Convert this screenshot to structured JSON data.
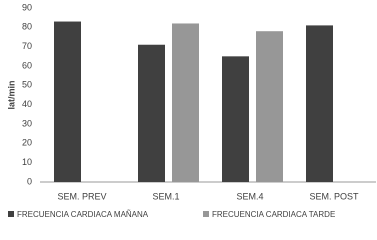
{
  "chart_data": {
    "type": "bar",
    "ylabel": "lat/min",
    "categories": [
      "SEM. PREV",
      "SEM.1",
      "SEM.4",
      "SEM. POST"
    ],
    "series": [
      {
        "name": "FRECUENCIA CARDIACA MAÑANA",
        "color": "#404040",
        "values": [
          83,
          71,
          65,
          81
        ]
      },
      {
        "name": "FRECUENCIA CARDIACA TARDE",
        "color": "#979797",
        "values": [
          null,
          82,
          78,
          null
        ]
      }
    ],
    "ylim": [
      0,
      90
    ],
    "yticks": [
      0,
      10,
      20,
      30,
      40,
      50,
      60,
      70,
      80,
      90
    ],
    "grid": false,
    "legend": "bottom"
  }
}
